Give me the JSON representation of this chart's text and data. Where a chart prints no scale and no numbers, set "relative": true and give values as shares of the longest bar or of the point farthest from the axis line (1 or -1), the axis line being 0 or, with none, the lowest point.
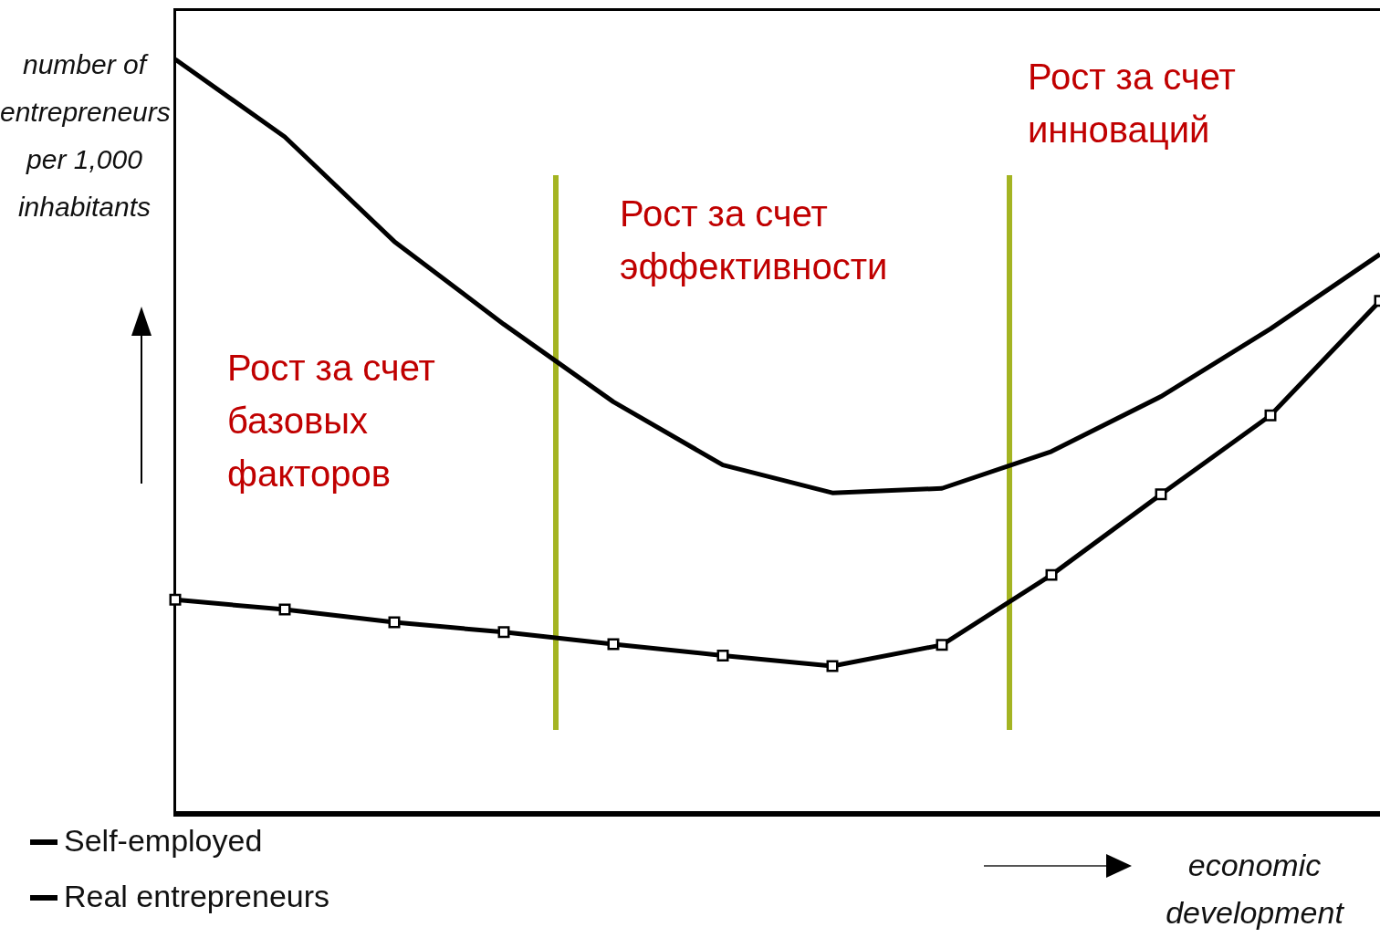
{
  "chart_data": {
    "type": "line",
    "relative": true,
    "ylabel": "number of entrepreneurs per 1,000 inhabitants",
    "xlabel": "economic development",
    "categories": [
      null,
      null,
      null,
      null,
      null,
      null,
      null,
      null,
      null,
      null,
      null,
      null
    ],
    "series": [
      {
        "name": "Self-employed",
        "color": "#000000",
        "marker": "none",
        "values": [
          1.0,
          0.897,
          0.758,
          0.648,
          0.545,
          0.461,
          0.424,
          0.43,
          0.479,
          0.552,
          0.642,
          0.741
        ]
      },
      {
        "name": "Real entrepreneurs",
        "color": "#000000",
        "marker": "square",
        "values": [
          0.282,
          0.269,
          0.252,
          0.239,
          0.223,
          0.208,
          0.194,
          0.222,
          0.315,
          0.422,
          0.527,
          0.679
        ]
      }
    ],
    "annotations": [
      "Рост за счет базовых факторов",
      "Рост за счет эффективности",
      "Рост за счет инноваций"
    ],
    "legend": "bottom left",
    "grid": false
  }
}
